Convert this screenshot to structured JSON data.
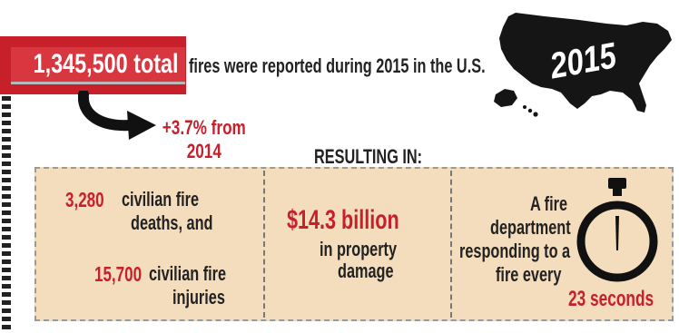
{
  "header": {
    "total": "1,345,500 total",
    "headline": "fires were reported during 2015 in the U.S.",
    "year": "2015"
  },
  "change": {
    "line1": "+3.7% from",
    "line2": "2014"
  },
  "resulting_label": "RESULTING IN:",
  "panels": {
    "deaths_num": "3,280",
    "deaths_line1": "civilian fire",
    "deaths_line2": "deaths, and",
    "injuries_num": "15,700",
    "injuries_line1": "civilian fire",
    "injuries_line2": "injuries",
    "damage_amount": "$14.3 billion",
    "damage_line1": "in property",
    "damage_line2": "damage",
    "response_line1": "A fire",
    "response_line2": "department",
    "response_line3": "responding to a",
    "response_line4": "fire every",
    "response_time": "23 seconds"
  },
  "colors": {
    "accent_red": "#c7202b",
    "panel_bg": "#f4ddbd",
    "map_fill": "#151515"
  },
  "icons": [
    "usa-map-icon",
    "curved-arrow-icon",
    "stopwatch-icon"
  ]
}
